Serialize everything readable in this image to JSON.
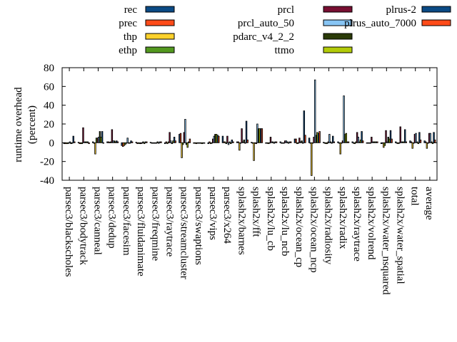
{
  "chart_data": {
    "type": "bar",
    "title": "",
    "xlabel": "",
    "ylabel": "runtime overhead\n(percent)",
    "ylabel_lines": [
      "runtime overhead",
      "(percent)"
    ],
    "ylim": [
      -40,
      80
    ],
    "yticks": [
      -40,
      -20,
      0,
      20,
      40,
      60,
      80
    ],
    "grid": false,
    "legend_position": "top",
    "categories": [
      "parsec3/blackscholes",
      "parsec3/bodytrack",
      "parsec3/canneal",
      "parsec3/dedup",
      "parsec3/facesim",
      "parsec3/fluidanimate",
      "parsec3/freqmine",
      "parsec3/raytrace",
      "parsec3/streamcluster",
      "parsec3/swaptions",
      "parsec3/vips",
      "parsec3/x264",
      "splash2x/barnes",
      "splash2x/fft",
      "splash2x/lu_cb",
      "splash2x/lu_ncb",
      "splash2x/ocean_cp",
      "splash2x/ocean_ncp",
      "splash2x/radiosity",
      "splash2x/radix",
      "splash2x/raytrace",
      "splash2x/volrend",
      "splash2x/water_nsquared",
      "splash2x/water_spatial",
      "total",
      "average"
    ],
    "series": [
      {
        "name": "rec",
        "color": "#0b4a85",
        "values": [
          -1,
          0.5,
          1,
          1,
          -3,
          0.5,
          0.5,
          -1,
          9,
          0,
          -1,
          7,
          1,
          0.5,
          0,
          1,
          4,
          5,
          0.5,
          1,
          1,
          -0.5,
          -1,
          1,
          2,
          2
        ]
      },
      {
        "name": "prec",
        "color": "#ff4b19",
        "values": [
          -1,
          -1,
          0,
          1,
          -4,
          -1,
          0,
          1,
          10,
          0,
          1,
          1,
          1,
          0,
          0,
          0,
          4,
          0,
          -0.5,
          0,
          0,
          -0.5,
          0,
          0,
          1,
          1
        ]
      },
      {
        "name": "thp",
        "color": "#fdd12b",
        "values": [
          -1,
          -1,
          -12,
          0.5,
          -3,
          0,
          0,
          -1,
          -16,
          -1,
          -1,
          1,
          -8,
          -19,
          -1,
          0,
          -1,
          -35,
          -1,
          -12,
          -1,
          0,
          -5,
          -1,
          -6,
          -6
        ]
      },
      {
        "name": "ethp",
        "color": "#53991f",
        "values": [
          -1,
          -1,
          5,
          1,
          -2,
          -1,
          0,
          1,
          -2,
          -0.5,
          0,
          -1,
          0,
          0,
          -0.5,
          0,
          0,
          0,
          -1,
          0,
          1,
          0,
          -3,
          0,
          0,
          0
        ]
      },
      {
        "name": "prcl",
        "color": "#780f32",
        "values": [
          0,
          16,
          5,
          14,
          0,
          -1,
          0,
          11,
          11,
          0,
          4,
          7,
          15,
          -1,
          6,
          2,
          5,
          6,
          1,
          2,
          11,
          6,
          13,
          17,
          9,
          10
        ]
      },
      {
        "name": "prcl_auto_50",
        "color": "#87c5f5",
        "values": [
          1,
          1,
          6,
          2,
          5,
          0,
          0,
          2,
          25,
          0,
          7,
          -2,
          1,
          20,
          1,
          2,
          1,
          67,
          9,
          50,
          6,
          1,
          1,
          1,
          10,
          10
        ]
      },
      {
        "name": "pdarc_v4_2_2",
        "color": "#2a3a08",
        "values": [
          -1,
          1,
          12,
          2,
          0,
          1,
          1,
          -1,
          -2,
          0,
          9,
          1,
          3,
          15,
          1,
          1,
          2,
          8,
          1,
          9,
          1,
          1,
          6,
          1,
          1,
          1
        ]
      },
      {
        "name": "ttmo",
        "color": "#b3cb09",
        "values": [
          0,
          1,
          6,
          1,
          0,
          -1,
          0,
          2,
          -5,
          -1,
          9,
          -1,
          0,
          15,
          0,
          0,
          0,
          11,
          0,
          10,
          3,
          1,
          4,
          1,
          -1,
          -1
        ]
      },
      {
        "name": "plrus-2",
        "color": "#0b4a85",
        "values": [
          7,
          1,
          12,
          2,
          2,
          1,
          1,
          6,
          1,
          0,
          8,
          3,
          23,
          15,
          1,
          1,
          34,
          10,
          7,
          1,
          12,
          1,
          13,
          14,
          11,
          11
        ]
      },
      {
        "name": "plrus_auto_7000",
        "color": "#ff4b19",
        "values": [
          1,
          -1,
          0,
          1,
          1,
          1,
          1,
          2,
          4,
          0,
          7,
          1,
          3,
          15,
          1,
          1,
          8,
          12,
          1,
          1,
          2,
          1,
          4,
          1,
          3,
          3
        ]
      }
    ]
  }
}
